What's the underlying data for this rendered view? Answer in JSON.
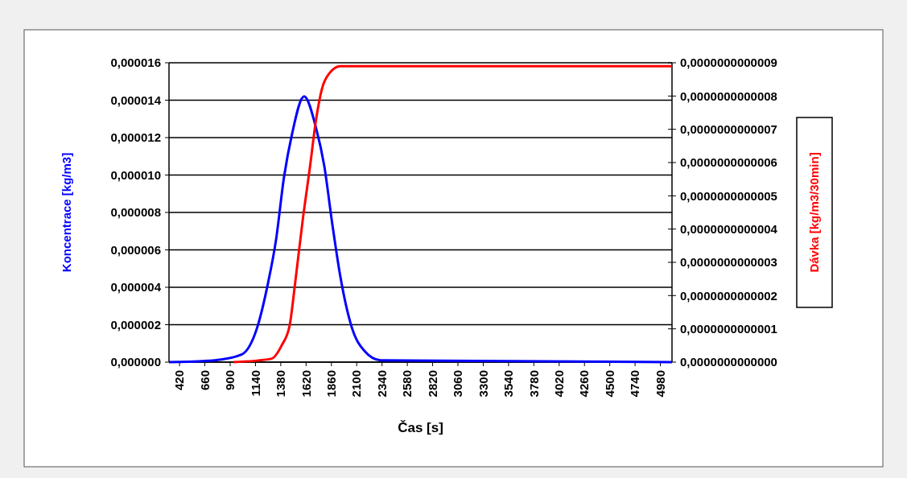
{
  "chart_data": {
    "type": "line",
    "xlabel": "Čas [s]",
    "ylabel": "Koncentrace [kg/m3]",
    "y2label": "Dávka [kg/m3/30min]",
    "xlim": [
      320,
      5090
    ],
    "xticks": [
      420,
      660,
      900,
      1140,
      1380,
      1620,
      1860,
      2100,
      2340,
      2580,
      2820,
      3060,
      3300,
      3540,
      3780,
      4020,
      4260,
      4500,
      4740,
      4980
    ],
    "ylim": [
      0,
      1.6e-05
    ],
    "yticks": [
      {
        "value": 0,
        "label": "0,000000"
      },
      {
        "value": 2e-06,
        "label": "0,000002"
      },
      {
        "value": 4e-06,
        "label": "0,000004"
      },
      {
        "value": 6e-06,
        "label": "0,000006"
      },
      {
        "value": 8e-06,
        "label": "0,000008"
      },
      {
        "value": 1e-05,
        "label": "0,000010"
      },
      {
        "value": 1.2e-05,
        "label": "0,000012"
      },
      {
        "value": 1.4e-05,
        "label": "0,000014"
      },
      {
        "value": 1.6e-05,
        "label": "0,000016"
      }
    ],
    "y2lim": [
      0,
      9e-13
    ],
    "y2ticks": [
      {
        "value": 0,
        "label": "0,0000000000000"
      },
      {
        "value": 1e-13,
        "label": "0,0000000000001"
      },
      {
        "value": 2e-13,
        "label": "0,0000000000002"
      },
      {
        "value": 3e-13,
        "label": "0,0000000000003"
      },
      {
        "value": 4e-13,
        "label": "0,0000000000004"
      },
      {
        "value": 5e-13,
        "label": "0,0000000000005"
      },
      {
        "value": 6e-13,
        "label": "0,0000000000006"
      },
      {
        "value": 7e-13,
        "label": "0,0000000000007"
      },
      {
        "value": 8e-13,
        "label": "0,0000000000008"
      },
      {
        "value": 9e-13,
        "label": "0,0000000000009"
      }
    ],
    "grid": "y",
    "marker": "none",
    "line_style": "solid",
    "series": [
      {
        "color": "#0000ff",
        "x": [
          320,
          755,
          1007,
          1159,
          1258,
          1334,
          1411,
          1487,
          1601,
          1715,
          1792,
          1868,
          1944,
          2051,
          2173,
          2325,
          5090
        ],
        "values": [
          0,
          1e-07,
          4e-07,
          1.9e-06,
          4.2e-06,
          6.5e-06,
          9.9e-06,
          1.22e-05,
          1.42e-05,
          1.25e-05,
          1.05e-05,
          7.4e-06,
          4.6e-06,
          1.9e-06,
          6e-07,
          1e-07,
          0
        ]
      },
      {
        "color": "#ff0000",
        "axis": "y2",
        "x": [
          930,
          1289,
          1388,
          1464,
          1517,
          1593,
          1654,
          1715,
          1769,
          1845,
          1944,
          5090
        ],
        "values": [
          0,
          1e-14,
          5e-14,
          1.1e-13,
          2.4e-13,
          4.4e-13,
          5.8e-13,
          7.3e-13,
          8.2e-13,
          8.7e-13,
          8.9e-13,
          8.9e-13
        ]
      }
    ]
  }
}
